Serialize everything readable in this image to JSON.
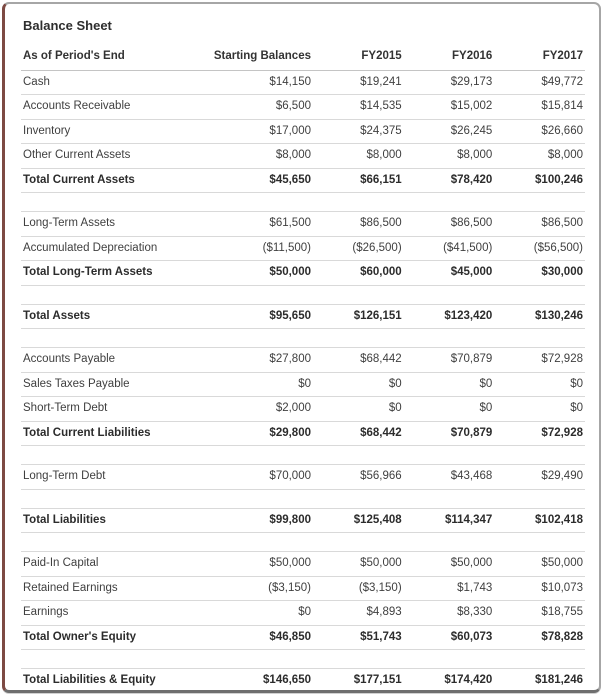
{
  "title": "Balance Sheet",
  "table": {
    "columns": [
      "As of Period's End",
      "Starting Balances",
      "FY2015",
      "FY2016",
      "FY2017"
    ],
    "rows": [
      {
        "label": "Cash",
        "values": [
          "$14,150",
          "$19,241",
          "$29,173",
          "$49,772"
        ],
        "bold": false
      },
      {
        "label": "Accounts Receivable",
        "values": [
          "$6,500",
          "$14,535",
          "$15,002",
          "$15,814"
        ],
        "bold": false
      },
      {
        "label": "Inventory",
        "values": [
          "$17,000",
          "$24,375",
          "$26,245",
          "$26,660"
        ],
        "bold": false
      },
      {
        "label": "Other Current Assets",
        "values": [
          "$8,000",
          "$8,000",
          "$8,000",
          "$8,000"
        ],
        "bold": false
      },
      {
        "label": "Total Current Assets",
        "values": [
          "$45,650",
          "$66,151",
          "$78,420",
          "$100,246"
        ],
        "bold": true
      },
      {
        "spacer": true
      },
      {
        "label": "Long-Term Assets",
        "values": [
          "$61,500",
          "$86,500",
          "$86,500",
          "$86,500"
        ],
        "bold": false
      },
      {
        "label": "Accumulated Depreciation",
        "values": [
          "($11,500)",
          "($26,500)",
          "($41,500)",
          "($56,500)"
        ],
        "bold": false
      },
      {
        "label": "Total Long-Term Assets",
        "values": [
          "$50,000",
          "$60,000",
          "$45,000",
          "$30,000"
        ],
        "bold": true
      },
      {
        "spacer": true
      },
      {
        "label": "Total Assets",
        "values": [
          "$95,650",
          "$126,151",
          "$123,420",
          "$130,246"
        ],
        "bold": true
      },
      {
        "spacer": true
      },
      {
        "label": "Accounts Payable",
        "values": [
          "$27,800",
          "$68,442",
          "$70,879",
          "$72,928"
        ],
        "bold": false
      },
      {
        "label": "Sales Taxes Payable",
        "values": [
          "$0",
          "$0",
          "$0",
          "$0"
        ],
        "bold": false
      },
      {
        "label": "Short-Term Debt",
        "values": [
          "$2,000",
          "$0",
          "$0",
          "$0"
        ],
        "bold": false
      },
      {
        "label": "Total Current Liabilities",
        "values": [
          "$29,800",
          "$68,442",
          "$70,879",
          "$72,928"
        ],
        "bold": true
      },
      {
        "spacer": true
      },
      {
        "label": "Long-Term Debt",
        "values": [
          "$70,000",
          "$56,966",
          "$43,468",
          "$29,490"
        ],
        "bold": false
      },
      {
        "spacer": true
      },
      {
        "label": "Total Liabilities",
        "values": [
          "$99,800",
          "$125,408",
          "$114,347",
          "$102,418"
        ],
        "bold": true
      },
      {
        "spacer": true
      },
      {
        "label": "Paid-In Capital",
        "values": [
          "$50,000",
          "$50,000",
          "$50,000",
          "$50,000"
        ],
        "bold": false
      },
      {
        "label": "Retained Earnings",
        "values": [
          "($3,150)",
          "($3,150)",
          "$1,743",
          "$10,073"
        ],
        "bold": false
      },
      {
        "label": "Earnings",
        "values": [
          "$0",
          "$4,893",
          "$8,330",
          "$18,755"
        ],
        "bold": false
      },
      {
        "label": "Total Owner's Equity",
        "values": [
          "$46,850",
          "$51,743",
          "$60,073",
          "$78,828"
        ],
        "bold": true
      },
      {
        "spacer": true
      },
      {
        "label": "Total Liabilities & Equity",
        "values": [
          "$146,650",
          "$177,151",
          "$174,420",
          "$181,246"
        ],
        "bold": true
      }
    ]
  }
}
